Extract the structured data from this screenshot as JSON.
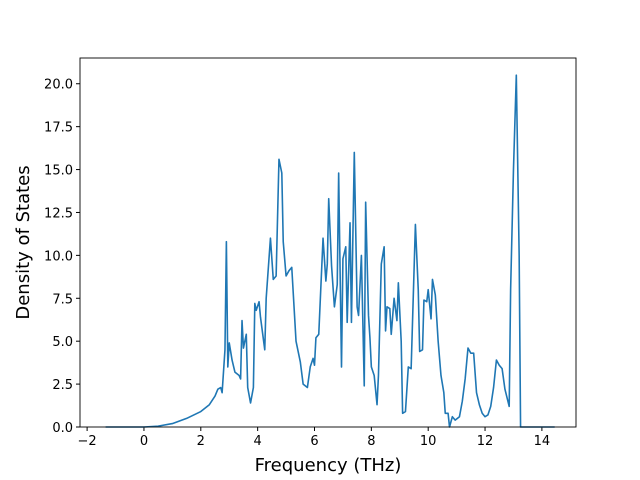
{
  "chart_data": {
    "type": "line",
    "x_label": "Frequency (THz)",
    "y_label": "Density of States",
    "color": "#1f77b4",
    "xlim": [
      -2.25,
      15.2
    ],
    "ylim": [
      0,
      21.5
    ],
    "xticks": [
      {
        "value": -2,
        "label": "−2"
      },
      0,
      2,
      4,
      6,
      8,
      10,
      12,
      14
    ],
    "yticks": [
      {
        "value": 0,
        "label": "0.0"
      },
      {
        "value": 2.5,
        "label": "2.5"
      },
      {
        "value": 5,
        "label": "5.0"
      },
      {
        "value": 7.5,
        "label": "7.5"
      },
      {
        "value": 10,
        "label": "10.0"
      },
      {
        "value": 12.5,
        "label": "12.5"
      },
      {
        "value": 15,
        "label": "15.0"
      },
      {
        "value": 17.5,
        "label": "17.5"
      },
      {
        "value": 20,
        "label": "20.0"
      }
    ],
    "x": [
      -1.35,
      0,
      0.5,
      1,
      1.5,
      2,
      2.3,
      2.5,
      2.6,
      2.7,
      2.75,
      2.85,
      2.9,
      2.95,
      3.0,
      3.1,
      3.2,
      3.35,
      3.4,
      3.45,
      3.5,
      3.6,
      3.65,
      3.75,
      3.85,
      3.9,
      3.95,
      4.05,
      4.1,
      4.25,
      4.3,
      4.45,
      4.55,
      4.65,
      4.75,
      4.85,
      4.9,
      5.0,
      5.1,
      5.2,
      5.35,
      5.5,
      5.6,
      5.75,
      5.85,
      5.95,
      6.0,
      6.05,
      6.15,
      6.3,
      6.4,
      6.45,
      6.5,
      6.6,
      6.7,
      6.8,
      6.85,
      6.95,
      7.0,
      7.1,
      7.15,
      7.25,
      7.3,
      7.4,
      7.5,
      7.55,
      7.65,
      7.75,
      7.8,
      7.9,
      7.95,
      8.0,
      8.1,
      8.2,
      8.25,
      8.35,
      8.45,
      8.5,
      8.55,
      8.65,
      8.7,
      8.8,
      8.9,
      8.95,
      9.05,
      9.1,
      9.2,
      9.3,
      9.4,
      9.55,
      9.65,
      9.7,
      9.8,
      9.85,
      9.95,
      10.0,
      10.1,
      10.15,
      10.25,
      10.35,
      10.45,
      10.55,
      10.6,
      10.7,
      10.75,
      10.85,
      10.95,
      11.1,
      11.2,
      11.3,
      11.4,
      11.5,
      11.6,
      11.7,
      11.8,
      11.9,
      12.0,
      12.1,
      12.2,
      12.3,
      12.4,
      12.5,
      12.6,
      12.7,
      12.85,
      12.9,
      13.0,
      13.1,
      13.2,
      13.25,
      14.45
    ],
    "values": [
      0,
      0,
      0.05,
      0.2,
      0.5,
      0.9,
      1.3,
      1.8,
      2.2,
      2.3,
      2.0,
      4.5,
      10.8,
      3.5,
      4.9,
      3.9,
      3.2,
      3.0,
      2.8,
      6.2,
      4.6,
      5.4,
      2.3,
      1.4,
      2.3,
      7.2,
      6.8,
      7.3,
      6.4,
      4.5,
      7.5,
      11.0,
      8.6,
      8.8,
      15.6,
      14.8,
      10.8,
      8.8,
      9.1,
      9.3,
      5.0,
      3.8,
      2.5,
      2.3,
      3.5,
      4.0,
      3.6,
      5.2,
      5.4,
      11.0,
      8.5,
      9.5,
      13.3,
      9.4,
      7.0,
      8.3,
      14.8,
      3.5,
      9.8,
      10.5,
      6.1,
      11.9,
      6.1,
      16.0,
      7.0,
      6.5,
      10.0,
      2.4,
      13.1,
      6.5,
      5.2,
      3.5,
      3.0,
      1.3,
      3.0,
      9.5,
      10.5,
      5.6,
      7.0,
      6.9,
      5.4,
      7.5,
      6.2,
      8.4,
      5.0,
      0.8,
      0.9,
      3.5,
      3.4,
      11.8,
      8.0,
      4.4,
      4.5,
      7.4,
      7.3,
      8.0,
      6.3,
      8.6,
      7.7,
      5.0,
      3.0,
      2.0,
      0.8,
      0.8,
      0,
      0.6,
      0.4,
      0.6,
      1.5,
      2.8,
      4.6,
      4.3,
      4.3,
      2.0,
      1.3,
      0.8,
      0.6,
      0.7,
      1.2,
      2.3,
      3.9,
      3.6,
      3.4,
      2.2,
      1.2,
      8.0,
      15.0,
      20.5,
      10.0,
      0,
      0
    ]
  }
}
